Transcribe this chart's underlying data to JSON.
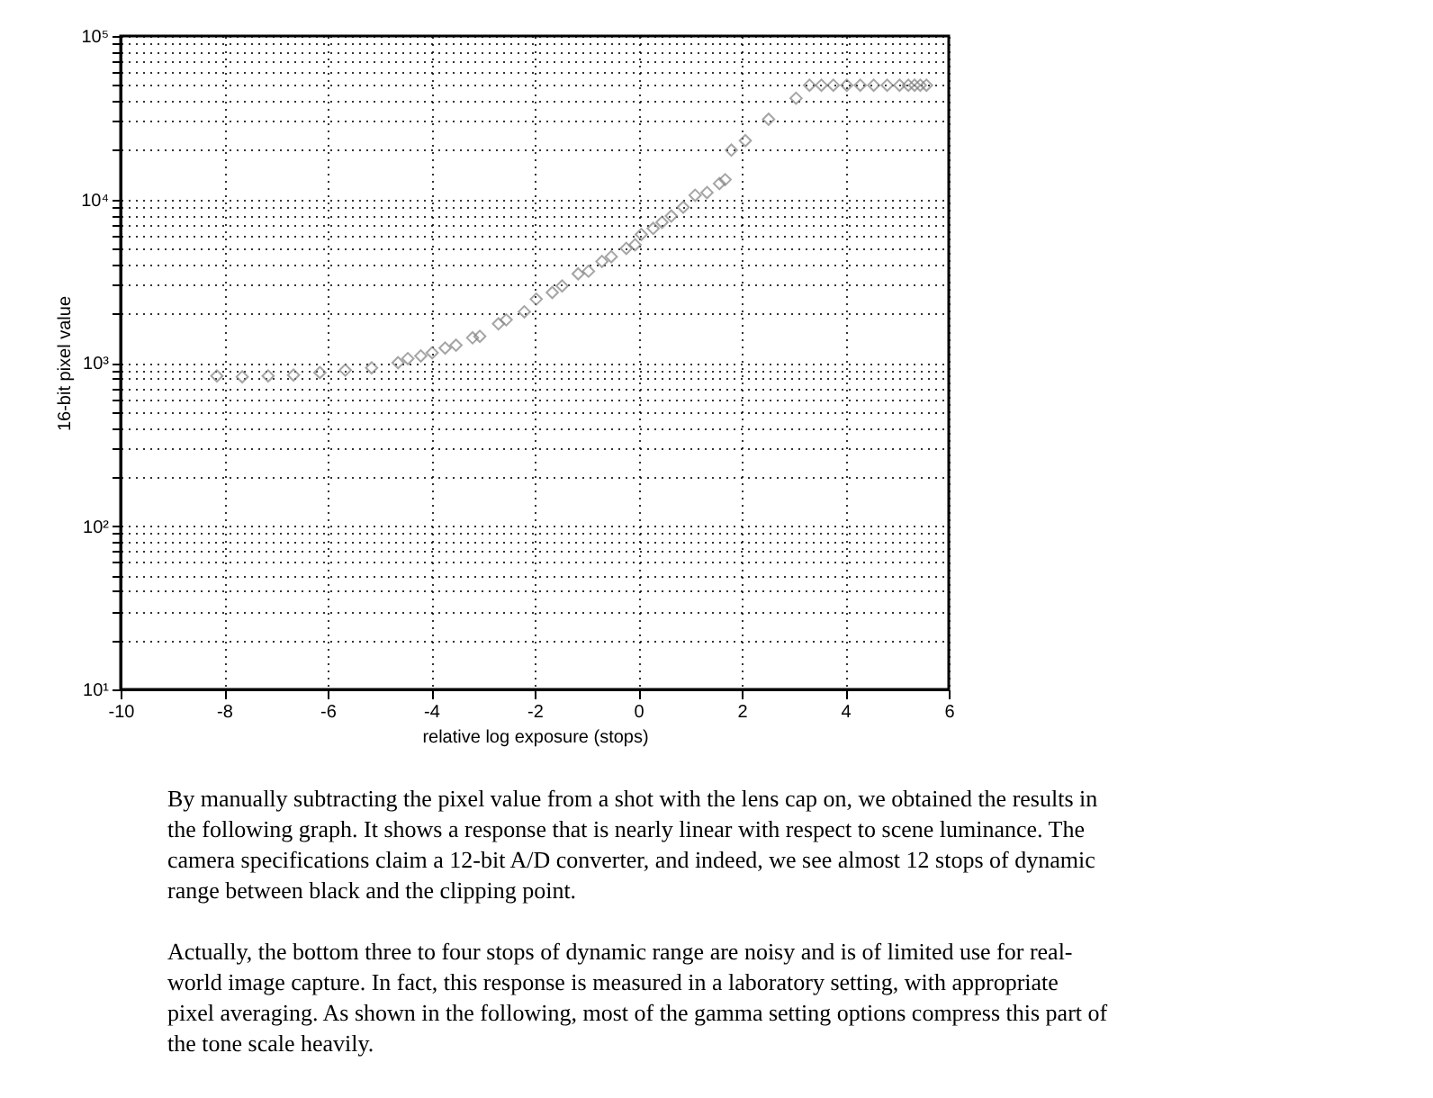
{
  "chart_data": {
    "type": "scatter",
    "xlabel": "relative log exposure (stops)",
    "ylabel": "16-bit pixel value",
    "x": [
      -8.14,
      -7.65,
      -7.15,
      -6.66,
      -6.15,
      -5.66,
      -5.15,
      -4.64,
      -4.45,
      -4.2,
      -3.98,
      -3.73,
      -3.52,
      -3.2,
      -3.06,
      -2.7,
      -2.55,
      -2.2,
      -1.97,
      -1.66,
      -1.47,
      -1.16,
      -0.96,
      -0.7,
      -0.52,
      -0.23,
      -0.06,
      0.06,
      0.29,
      0.46,
      0.64,
      0.87,
      1.1,
      1.33,
      1.57,
      1.68,
      1.8,
      2.07,
      2.52,
      3.05,
      3.31,
      3.54,
      3.77,
      4.03,
      4.29,
      4.55,
      4.81,
      5.05,
      5.22,
      5.34,
      5.45,
      5.57
    ],
    "series": [
      {
        "color": "#7f7f7f",
        "values": [
          830,
          820,
          830,
          840,
          870,
          900,
          930,
          1000,
          1060,
          1100,
          1150,
          1230,
          1280,
          1420,
          1450,
          1730,
          1830,
          2050,
          2450,
          2690,
          2950,
          3500,
          3630,
          4170,
          4460,
          5010,
          5270,
          6100,
          6640,
          7240,
          7900,
          8950,
          10600,
          11000,
          12500,
          13200,
          20000,
          22900,
          30900,
          41600,
          50000,
          50000,
          50000,
          50000,
          50000,
          50000,
          50000,
          50000,
          50000,
          50000,
          50000,
          50000
        ]
      }
    ],
    "marker": "diamond",
    "log": "y",
    "grid": true,
    "xlim": [
      -10,
      6
    ],
    "xticks": [
      -10,
      -8,
      -6,
      -4,
      -2,
      0,
      2,
      4,
      6
    ],
    "ylim": [
      10,
      100000
    ],
    "yticks": [
      {
        "value": 10,
        "label": "10¹"
      },
      {
        "value": 100,
        "label": "10²"
      },
      {
        "value": 1000,
        "label": "10³"
      },
      {
        "value": 10000,
        "label": "10⁴"
      },
      {
        "value": 100000,
        "label": "10⁵"
      }
    ],
    "annotations": [
      "By manually subtracting the pixel value from a shot with the lens cap on, we obtained the results in the following graph. It shows a response that is nearly linear with respect to scene luminance. The camera specifications claim a 12-bit A/D converter, and indeed, we see almost 12 stops of dynamic range between black and the clipping point.",
      "Actually, the bottom three to four stops of dynamic range are noisy and is of limited use for real-world image capture. In fact, this response is measured in a laboratory setting, with appropriate pixel averaging. As shown in the following, most of the gamma setting options compress this part of the tone scale heavily."
    ]
  }
}
